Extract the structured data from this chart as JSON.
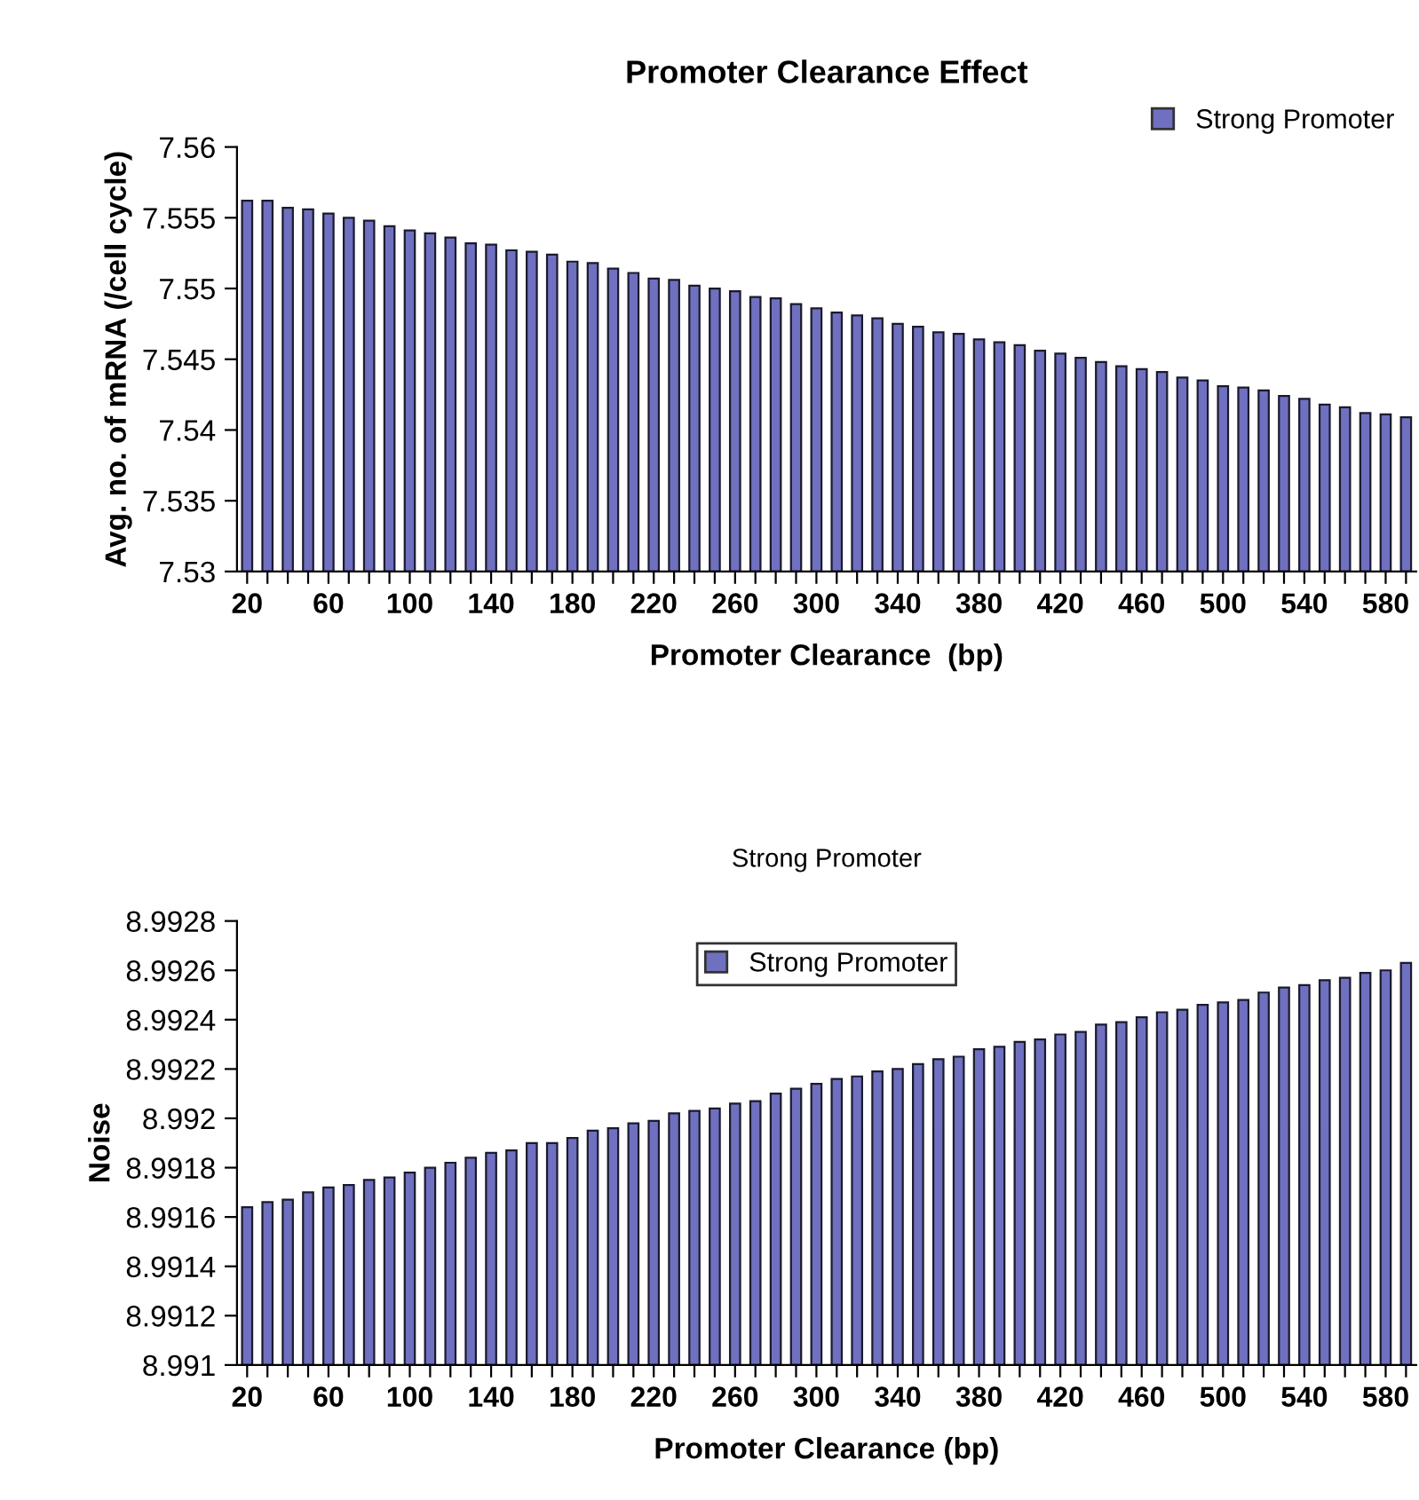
{
  "chart_data": [
    {
      "type": "bar",
      "title": "Promoter Clearance Effect",
      "xlabel": "Promoter Clearance  (bp)",
      "ylabel": "Avg. no. of mRNA (/cell cycle)",
      "categories": [
        "20",
        null,
        null,
        null,
        "60",
        null,
        null,
        null,
        "100",
        null,
        null,
        null,
        "140",
        null,
        null,
        null,
        "180",
        null,
        null,
        null,
        "220",
        null,
        null,
        null,
        "260",
        null,
        null,
        null,
        "300",
        null,
        null,
        null,
        "340",
        null,
        null,
        null,
        "380",
        null,
        null,
        null,
        "420",
        null,
        null,
        null,
        "460",
        null,
        null,
        null,
        "500",
        null,
        null,
        null,
        "540",
        null,
        null,
        null,
        "580",
        null
      ],
      "series": [
        {
          "name": "Strong Promoter",
          "color": "#7070c0",
          "values": [
            7.5562,
            7.5562,
            7.5557,
            7.5556,
            7.5553,
            7.555,
            7.5548,
            7.5544,
            7.5541,
            7.5539,
            7.5536,
            7.5532,
            7.5531,
            7.5527,
            7.5526,
            7.5524,
            7.5519,
            7.5518,
            7.5514,
            7.5511,
            7.5507,
            7.5506,
            7.5502,
            7.55,
            7.5498,
            7.5494,
            7.5493,
            7.5489,
            7.5486,
            7.5483,
            7.5481,
            7.5479,
            7.5475,
            7.5473,
            7.5469,
            7.5468,
            7.5464,
            7.5462,
            7.546,
            7.5456,
            7.5454,
            7.5451,
            7.5448,
            7.5445,
            7.5443,
            7.5441,
            7.5437,
            7.5435,
            7.5431,
            7.543,
            7.5428,
            7.5424,
            7.5422,
            7.5418,
            7.5416,
            7.5412,
            7.5411,
            7.5409
          ]
        }
      ],
      "ylim": [
        7.53,
        7.56
      ],
      "yticks": [
        7.53,
        7.535,
        7.54,
        7.545,
        7.55,
        7.555,
        7.56
      ],
      "legend": "top right",
      "grid": false
    },
    {
      "type": "bar",
      "title": "Strong Promoter",
      "xlabel": "Promoter Clearance (bp)",
      "ylabel": "Noise",
      "categories": [
        "20",
        null,
        null,
        null,
        "60",
        null,
        null,
        null,
        "100",
        null,
        null,
        null,
        "140",
        null,
        null,
        null,
        "180",
        null,
        null,
        null,
        "220",
        null,
        null,
        null,
        "260",
        null,
        null,
        null,
        "300",
        null,
        null,
        null,
        "340",
        null,
        null,
        null,
        "380",
        null,
        null,
        null,
        "420",
        null,
        null,
        null,
        "460",
        null,
        null,
        null,
        "500",
        null,
        null,
        null,
        "540",
        null,
        null,
        null,
        "580",
        null
      ],
      "series": [
        {
          "name": "Strong Promoter",
          "color": "#7070c0",
          "values": [
            8.99164,
            8.99166,
            8.99167,
            8.9917,
            8.99172,
            8.99173,
            8.99175,
            8.99176,
            8.99178,
            8.9918,
            8.99182,
            8.99184,
            8.99186,
            8.99187,
            8.9919,
            8.9919,
            8.99192,
            8.99195,
            8.99196,
            8.99198,
            8.99199,
            8.99202,
            8.99203,
            8.99204,
            8.99206,
            8.99207,
            8.9921,
            8.99212,
            8.99214,
            8.99216,
            8.99217,
            8.99219,
            8.9922,
            8.99222,
            8.99224,
            8.99225,
            8.99228,
            8.99229,
            8.99231,
            8.99232,
            8.99234,
            8.99235,
            8.99238,
            8.99239,
            8.99241,
            8.99243,
            8.99244,
            8.99246,
            8.99247,
            8.99248,
            8.99251,
            8.99253,
            8.99254,
            8.99256,
            8.99257,
            8.99259,
            8.9926,
            8.99263
          ]
        }
      ],
      "ylim": [
        8.991,
        8.9928
      ],
      "yticks": [
        8.991,
        8.9912,
        8.9914,
        8.9916,
        8.9918,
        8.992,
        8.9922,
        8.9924,
        8.9926,
        8.9928
      ],
      "legend": "top",
      "grid": false
    }
  ]
}
